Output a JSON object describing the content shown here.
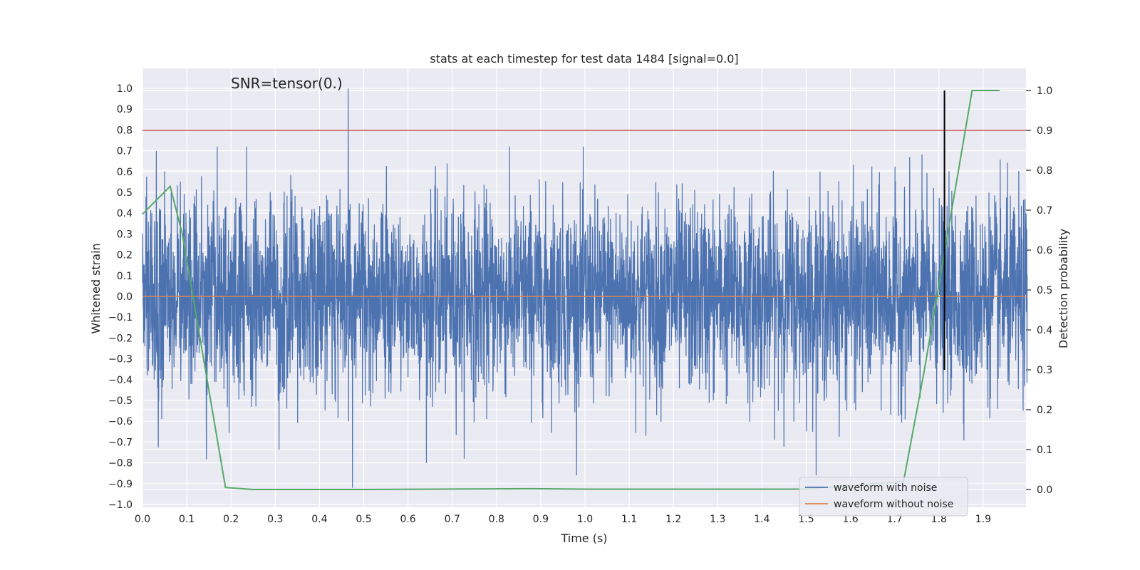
{
  "chart_data": {
    "type": "line",
    "title": "stats at each timestep for test data 1484 [signal=0.0]",
    "xlabel": "Time (s)",
    "ylabel": "Whitened strain",
    "y2label": "Detection probability",
    "annotation": "SNR=tensor(0.)",
    "xlim": [
      0.0,
      2.0
    ],
    "ylim": [
      -1.0,
      1.0
    ],
    "y2lim": [
      0.0,
      1.0
    ],
    "x_ticks": [
      "0.0",
      "0.1",
      "0.2",
      "0.3",
      "0.4",
      "0.5",
      "0.6",
      "0.7",
      "0.8",
      "0.9",
      "1.0",
      "1.1",
      "1.2",
      "1.3",
      "1.4",
      "1.5",
      "1.6",
      "1.7",
      "1.8",
      "1.9"
    ],
    "y_ticks": [
      "1.0",
      "0.9",
      "0.8",
      "0.7",
      "0.6",
      "0.5",
      "0.4",
      "0.3",
      "0.2",
      "0.1",
      "0.0",
      "−0.1",
      "−0.2",
      "−0.3",
      "−0.4",
      "−0.5",
      "−0.6",
      "−0.7",
      "−0.8",
      "−0.9",
      "−1.0"
    ],
    "y2_ticks": [
      "1.0",
      "0.9",
      "0.8",
      "0.7",
      "0.6",
      "0.5",
      "0.4",
      "0.3",
      "0.2",
      "0.1",
      "0.0"
    ],
    "legend": {
      "placement": "lower-right",
      "entries": [
        "waveform with noise",
        "waveform without noise"
      ]
    },
    "series": [
      {
        "name": "waveform with noise",
        "color": "#4c72b0",
        "kind": "noise",
        "sample_rate": 2048,
        "amplitude_std": 0.23,
        "peak_max": 1.0,
        "peak_min": -0.92
      },
      {
        "name": "waveform without noise",
        "color": "#dd8452",
        "x": [
          0.0,
          2.0
        ],
        "values": [
          0.0,
          0.0
        ]
      },
      {
        "name": "Detection probability",
        "color": "#55a868",
        "axis": "right",
        "x": [
          0.0,
          0.0625,
          0.09,
          0.1875,
          0.25,
          0.5,
          0.875,
          1.0,
          1.5,
          1.72,
          1.7656,
          1.875,
          1.9375
        ],
        "values": [
          0.69,
          0.76,
          0.64,
          0.005,
          0.0,
          0.0,
          0.002,
          0.001,
          0.001,
          0.02,
          0.29,
          1.0,
          1.0
        ]
      }
    ],
    "threshold": {
      "value": 0.9,
      "axis": "right",
      "color": "#c44e52"
    },
    "marker_line": {
      "x": 1.8125,
      "axis": "right",
      "ymin": 0.3,
      "ymax": 1.0,
      "color": "#000000"
    }
  }
}
